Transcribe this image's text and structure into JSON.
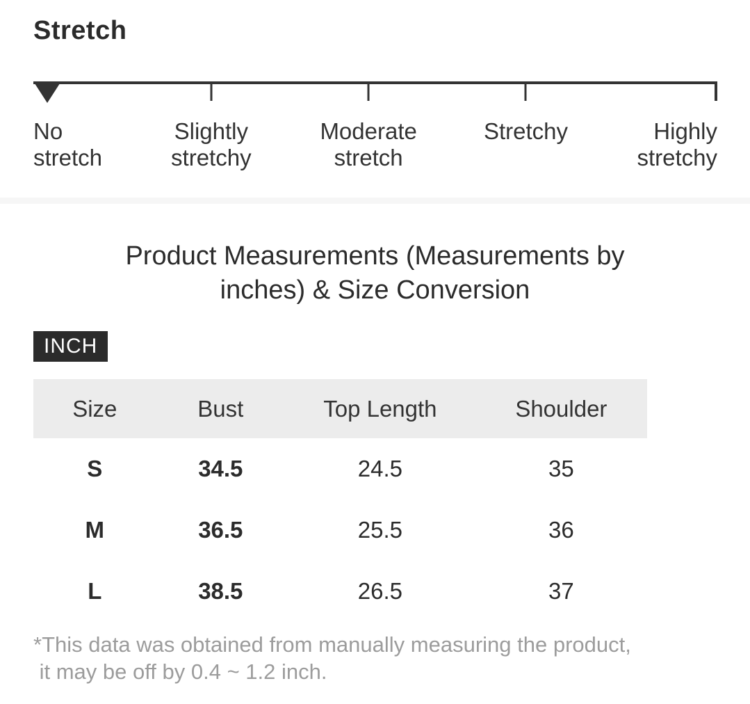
{
  "stretch": {
    "heading": "Stretch",
    "selected_level": "No stretch",
    "selected_index": 0,
    "levels": [
      "No stretch",
      "Slightly stretchy",
      "Moderate stretch",
      "Stretchy",
      "Highly stretchy"
    ]
  },
  "measurements": {
    "title_line1": "Product Measurements (Measurements by",
    "title_line2": "inches) & Size Conversion",
    "unit_badge": "INCH",
    "table": {
      "columns": [
        "Size",
        "Bust",
        "Top Length",
        "Shoulder"
      ],
      "rows": [
        {
          "size": "S",
          "bust": "34.5",
          "top_length": "24.5",
          "shoulder": "35"
        },
        {
          "size": "M",
          "bust": "36.5",
          "top_length": "25.5",
          "shoulder": "36"
        },
        {
          "size": "L",
          "bust": "38.5",
          "top_length": "26.5",
          "shoulder": "37"
        }
      ]
    },
    "footnote_line1": "*This data was obtained from manually measuring the product,",
    "footnote_line2": " it may be off by 0.4 ~ 1.2 inch."
  },
  "colors": {
    "heading_text": "#2b2b2b",
    "body_text": "#333333",
    "scale_line": "#333333",
    "badge_bg": "#2b2b2b",
    "badge_text": "#ffffff",
    "table_header_bg": "#ececec",
    "divider": "#f6f6f6",
    "footnote_text": "#9c9c9c"
  }
}
